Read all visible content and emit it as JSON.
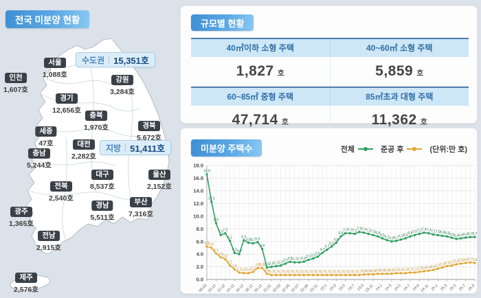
{
  "map_panel": {
    "title": "전국 미분양 현황",
    "callouts": [
      {
        "label": "수도권",
        "value": "15,351호"
      },
      {
        "label": "지방",
        "value": "51,411호"
      }
    ],
    "regions": [
      {
        "name": "서울",
        "value": "1,088호"
      },
      {
        "name": "인천",
        "value": "1,607호"
      },
      {
        "name": "경기",
        "value": "12,656호"
      },
      {
        "name": "강원",
        "value": "3,284호"
      },
      {
        "name": "충북",
        "value": "1,970호"
      },
      {
        "name": "세종",
        "value": "47호"
      },
      {
        "name": "경북",
        "value": "5,672호"
      },
      {
        "name": "대전",
        "value": "2,282호"
      },
      {
        "name": "충남",
        "value": "5,244호"
      },
      {
        "name": "대구",
        "value": "8,537호"
      },
      {
        "name": "울산",
        "value": "2,152호"
      },
      {
        "name": "전북",
        "value": "2,540호"
      },
      {
        "name": "경남",
        "value": "5,511호"
      },
      {
        "name": "부산",
        "value": "7,316호"
      },
      {
        "name": "광주",
        "value": "1,365호"
      },
      {
        "name": "전남",
        "value": "2,915호"
      },
      {
        "name": "제주",
        "value": "2,576호"
      }
    ]
  },
  "size_panel": {
    "title": "규모별 현황",
    "cells": [
      {
        "header": "40㎡이하 소형 주택",
        "value": "1,827",
        "unit": "호"
      },
      {
        "header": "40~60㎡ 소형 주택",
        "value": "5,859",
        "unit": "호"
      },
      {
        "header": "60~85㎡ 중형 주택",
        "value": "47,714",
        "unit": "호"
      },
      {
        "header": "85㎡초과 대형 주택",
        "value": "11,362",
        "unit": "호"
      }
    ]
  },
  "chart_panel": {
    "title": "미분양 주택수",
    "legend": [
      {
        "label": "전체",
        "color": "#2e9e60"
      },
      {
        "label": "준공 후",
        "color": "#e0a634"
      }
    ],
    "unit_note": "(단위:만 호)"
  },
  "chart_data": {
    "type": "line",
    "title": "미분양 주택수",
    "unit": "만 호",
    "ylim": [
      0,
      18
    ],
    "ytick_step": 2,
    "grid": true,
    "legend_position": "top-right",
    "x_labels": [
      "09.03",
      "10.12",
      "12.12",
      "14.12",
      "16.12",
      "18.12",
      "20.12",
      "22.01",
      "22.03",
      "22.05",
      "22.07",
      "22.09",
      "22.11",
      "23.1",
      "23.3",
      "23.5",
      "23.7",
      "23.9",
      "23.11",
      "24.1",
      "24.3",
      "24.5",
      "24.7",
      "24.9",
      "24.11",
      "25.1",
      "25.3",
      "25.5",
      "25.7",
      "25.9"
    ],
    "label_every": 2,
    "series": [
      {
        "name": "전체",
        "color": "#2e9e60",
        "label_color": "#2c7a4e",
        "values": [
          16.6,
          12.3,
          8.9,
          7.0,
          7.3,
          6.1,
          4.2,
          4.0,
          6.2,
          5.8,
          5.7,
          5.9,
          4.8,
          1.9,
          2.0,
          2.1,
          2.2,
          2.5,
          2.8,
          2.7,
          2.7,
          2.8,
          3.1,
          3.3,
          3.6,
          4.2,
          4.7,
          5.2,
          5.8,
          6.8,
          7.3,
          7.3,
          7.2,
          7.5,
          7.4,
          7.2,
          7.0,
          6.8,
          6.5,
          6.2,
          6.0,
          6.1,
          6.3,
          6.5,
          6.8,
          7.0,
          7.2,
          7.4,
          7.3,
          7.1,
          7.0,
          6.9,
          6.8,
          6.6,
          6.4,
          6.5,
          6.6,
          6.7,
          6.7
        ]
      },
      {
        "name": "준공 후",
        "color": "#e0a634",
        "label_color": "#bb861c",
        "values": [
          5.2,
          5.0,
          4.1,
          3.5,
          3.2,
          2.2,
          1.6,
          1.1,
          1.0,
          1.0,
          1.2,
          1.8,
          1.8,
          0.9,
          0.7,
          0.7,
          0.7,
          0.7,
          0.7,
          0.7,
          0.7,
          0.7,
          0.7,
          0.7,
          0.7,
          0.7,
          0.7,
          0.7,
          0.7,
          0.7,
          0.7,
          0.7,
          0.7,
          0.7,
          0.8,
          0.8,
          0.8,
          0.9,
          0.9,
          0.9,
          0.9,
          1.0,
          1.0,
          1.0,
          1.1,
          1.1,
          1.2,
          1.3,
          1.4,
          1.5,
          1.7,
          1.9,
          2.1,
          2.2,
          2.4,
          2.5,
          2.6,
          2.7,
          2.6
        ]
      }
    ]
  }
}
